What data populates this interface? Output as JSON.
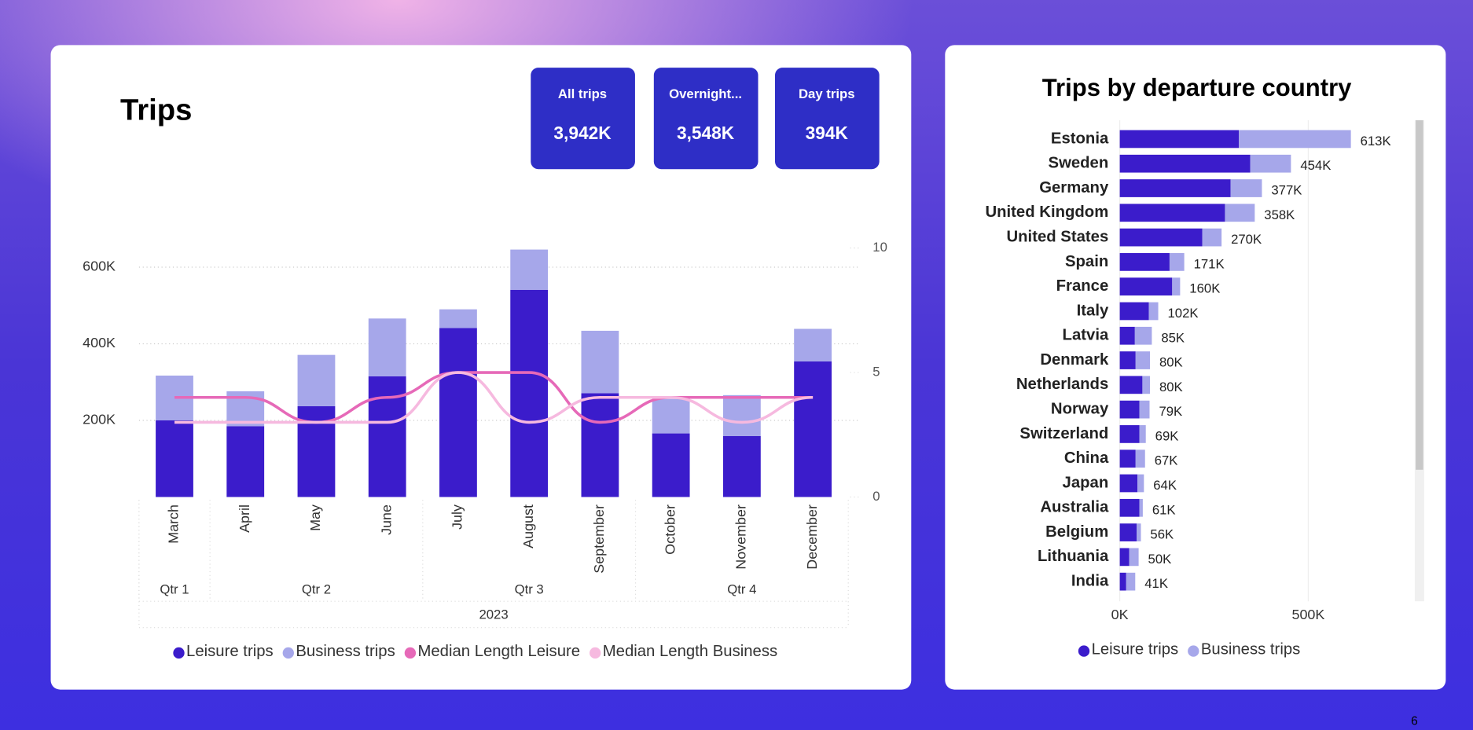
{
  "cards": [
    {
      "title": "All trips",
      "value": "3,942K"
    },
    {
      "title": "Overnight...",
      "value": "3,548K"
    },
    {
      "title": "Day trips",
      "value": "394K"
    }
  ],
  "page_number": "6",
  "chart_data": [
    {
      "type": "bar",
      "stacked": true,
      "title": "Trips",
      "categories": [
        "March",
        "April",
        "May",
        "June",
        "July",
        "August",
        "September",
        "October",
        "November",
        "December"
      ],
      "quarters": [
        "Qtr 1",
        "Qtr 2",
        "Qtr 2",
        "Qtr 2",
        "Qtr 3",
        "Qtr 3",
        "Qtr 3",
        "Qtr 4",
        "Qtr 4",
        "Qtr 4"
      ],
      "year": "2023",
      "series": [
        {
          "name": "Leisure trips",
          "color": "#3b1ccb",
          "values": [
            200000,
            185000,
            237000,
            315000,
            441000,
            541000,
            271000,
            166000,
            159000,
            354000
          ]
        },
        {
          "name": "Business trips",
          "color": "#a6a7ea",
          "values": [
            117000,
            91000,
            134000,
            151000,
            49000,
            105000,
            163000,
            90000,
            107000,
            85000
          ]
        },
        {
          "name": "Median Length Leisure",
          "color": "#e669b8",
          "type": "line",
          "axis": "y2",
          "values": [
            4,
            4,
            3,
            4,
            5,
            5,
            3,
            4,
            4,
            4
          ]
        },
        {
          "name": "Median Length Business",
          "color": "#f6b9df",
          "type": "line",
          "axis": "y2",
          "values": [
            3,
            3,
            3,
            3,
            5,
            3,
            4,
            4,
            3,
            4
          ]
        }
      ],
      "ylim": [
        0,
        650000
      ],
      "yticks": [
        {
          "value": 200000,
          "label": "200K"
        },
        {
          "value": 400000,
          "label": "400K"
        },
        {
          "value": 600000,
          "label": "600K"
        }
      ],
      "y2lim": [
        0,
        10
      ],
      "y2ticks": [
        0,
        5,
        10
      ],
      "grid": true,
      "legend": "bottom"
    },
    {
      "type": "bar",
      "horizontal": true,
      "stacked": true,
      "title": "Trips by departure country",
      "categories": [
        "Estonia",
        "Sweden",
        "Germany",
        "United Kingdom",
        "United States",
        "Spain",
        "France",
        "Italy",
        "Latvia",
        "Denmark",
        "Netherlands",
        "Norway",
        "Switzerland",
        "China",
        "Japan",
        "Australia",
        "Belgium",
        "Lithuania",
        "India"
      ],
      "series": [
        {
          "name": "Leisure trips",
          "color": "#3b1ccb",
          "values": [
            316000,
            346000,
            294000,
            279000,
            219000,
            132000,
            139000,
            77000,
            40000,
            42000,
            60000,
            52000,
            52000,
            42000,
            47000,
            52000,
            45000,
            25000,
            17000
          ]
        },
        {
          "name": "Business trips",
          "color": "#a6a7ea",
          "values": [
            297000,
            108000,
            83000,
            79000,
            51000,
            39000,
            21000,
            25000,
            45000,
            38000,
            20000,
            27000,
            17000,
            25000,
            17000,
            9000,
            11000,
            25000,
            24000
          ]
        }
      ],
      "total_labels": [
        "613K",
        "454K",
        "377K",
        "358K",
        "270K",
        "171K",
        "160K",
        "102K",
        "85K",
        "80K",
        "80K",
        "79K",
        "69K",
        "67K",
        "64K",
        "61K",
        "56K",
        "50K",
        "41K"
      ],
      "xlim": [
        0,
        760000
      ],
      "xticks": [
        {
          "value": 0,
          "label": "0K"
        },
        {
          "value": 500000,
          "label": "500K"
        }
      ],
      "legend": "bottom"
    }
  ]
}
